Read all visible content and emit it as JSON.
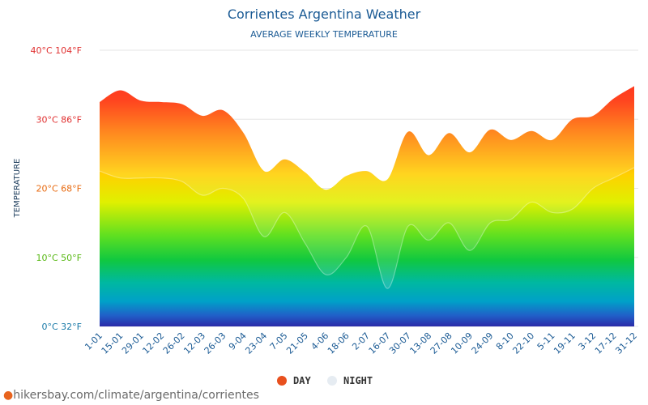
{
  "chart_data": {
    "type": "area",
    "title": "Corrientes Argentina Weather",
    "subtitle": "AVERAGE WEEKLY TEMPERATURE",
    "ylabel": "TEMPERATURE",
    "ylim": [
      0,
      40
    ],
    "y_ticks": [
      {
        "value": 40,
        "label": "40°C 104°F",
        "color": "#e03030"
      },
      {
        "value": 30,
        "label": "30°C 86°F",
        "color": "#e03030"
      },
      {
        "value": 20,
        "label": "20°C 68°F",
        "color": "#e86a10"
      },
      {
        "value": 10,
        "label": "10°C 50°F",
        "color": "#58b814"
      },
      {
        "value": 0,
        "label": "0°C 32°F",
        "color": "#1a7aa8"
      }
    ],
    "categories": [
      "1-01",
      "15-01",
      "29-01",
      "12-02",
      "26-02",
      "12-03",
      "26-03",
      "9-04",
      "23-04",
      "7-05",
      "21-05",
      "4-06",
      "18-06",
      "2-07",
      "16-07",
      "30-07",
      "13-08",
      "27-08",
      "10-09",
      "24-09",
      "8-10",
      "22-10",
      "5-11",
      "19-11",
      "3-12",
      "17-12",
      "31-12"
    ],
    "series": [
      {
        "name": "DAY",
        "color": "#e8501e",
        "values": [
          32.5,
          34.2,
          32.7,
          32.5,
          32.2,
          30.5,
          31.3,
          28.0,
          22.5,
          24.2,
          22.3,
          19.8,
          21.8,
          22.5,
          21.3,
          28.2,
          24.8,
          28.0,
          25.2,
          28.5,
          27.0,
          28.3,
          27.0,
          30.0,
          30.5,
          33.0,
          34.8
        ]
      },
      {
        "name": "NIGHT",
        "color": "#e6ecf2",
        "values": [
          22.5,
          21.5,
          21.5,
          21.5,
          21.0,
          19.0,
          20.0,
          18.5,
          13.0,
          16.5,
          12.0,
          7.5,
          10.0,
          14.5,
          5.5,
          14.5,
          12.5,
          15.0,
          11.0,
          15.0,
          15.5,
          18.0,
          16.5,
          17.0,
          20.0,
          21.5,
          23.0
        ]
      }
    ],
    "grid": true,
    "legend_position": "bottom-center"
  },
  "source": {
    "text": "hikersbay.com/climate/argentina/corrientes",
    "icon": "location-pin-icon"
  }
}
